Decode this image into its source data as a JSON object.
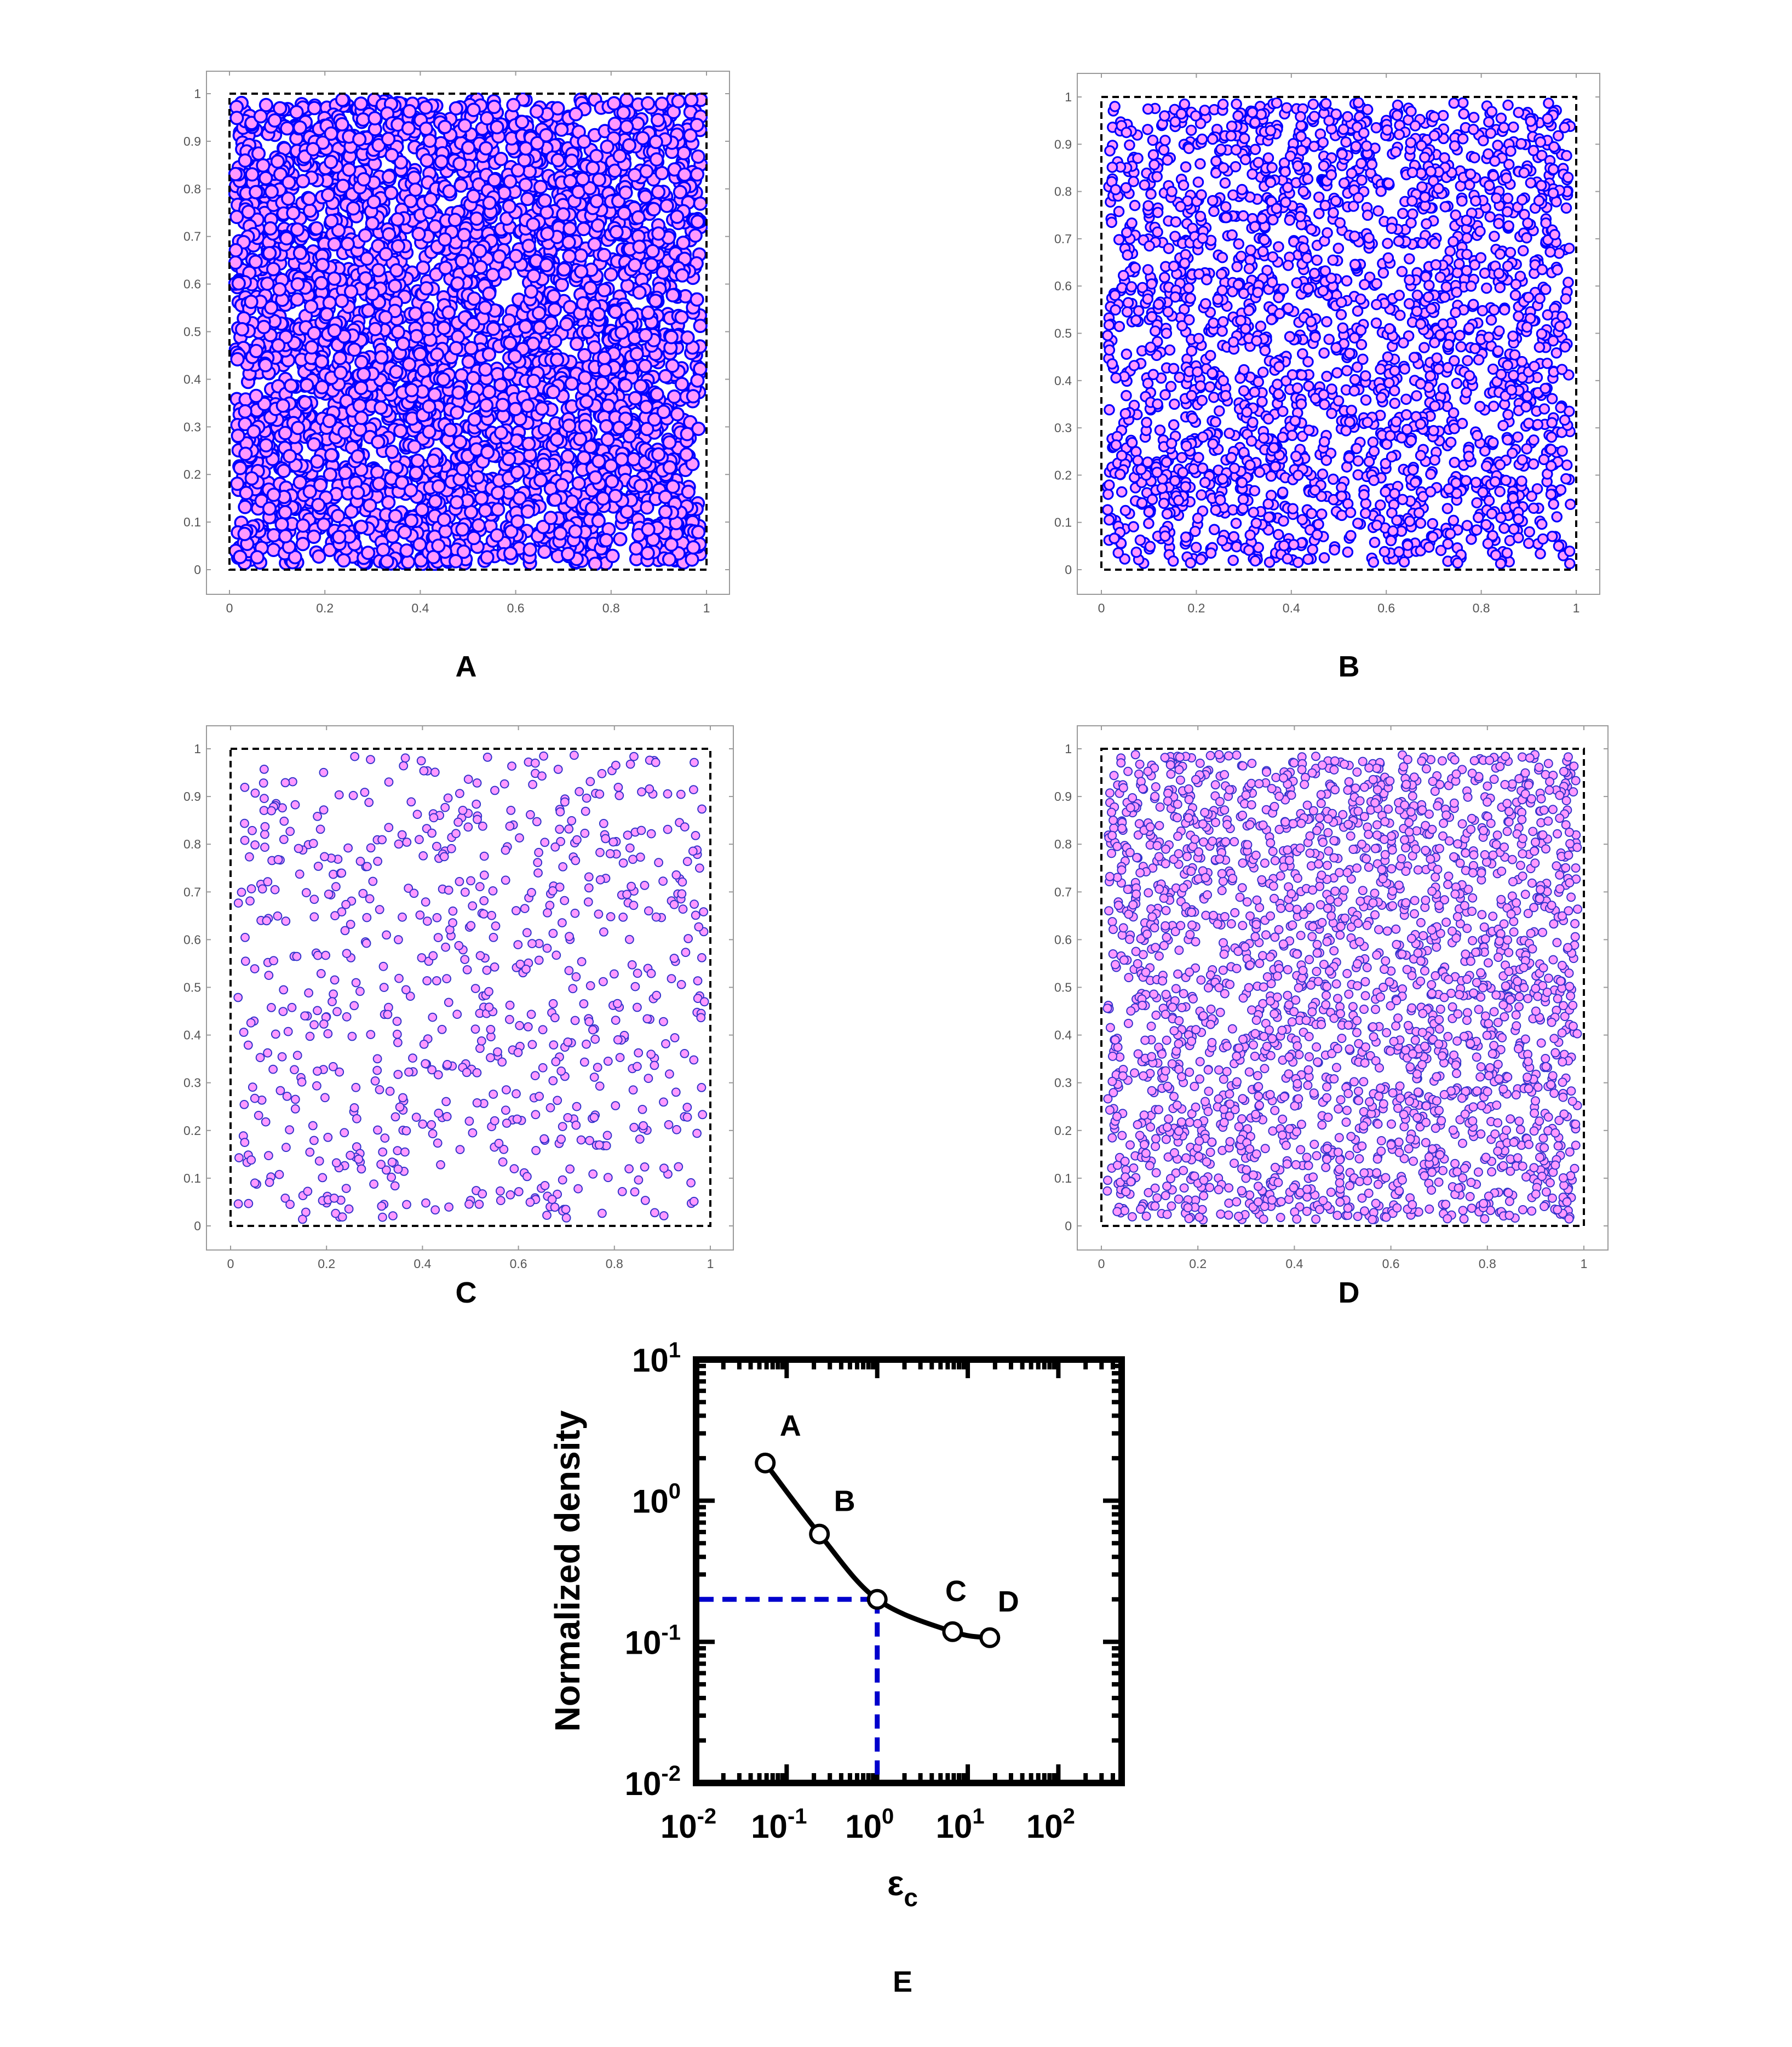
{
  "chart_data": [
    {
      "panel": "A",
      "type": "scatter",
      "label": "A",
      "xlim": [
        0,
        1
      ],
      "ylim": [
        0,
        1
      ],
      "x_ticks": [
        "0",
        "0.2",
        "0.4",
        "0.6",
        "0.8",
        "1"
      ],
      "y_ticks": [
        "0",
        "0.1",
        "0.2",
        "0.3",
        "0.4",
        "0.5",
        "0.6",
        "0.7",
        "0.8",
        "0.9",
        "1"
      ],
      "particle_count_estimate": 3500,
      "marker_fill": "#ff99ff",
      "marker_edge": "#0000ff",
      "boundary": "dashed square (0,0)-(1,1)",
      "grid": false
    },
    {
      "panel": "B",
      "type": "scatter",
      "label": "B",
      "xlim": [
        0,
        1
      ],
      "ylim": [
        0,
        1
      ],
      "x_ticks": [
        "0",
        "0.2",
        "0.4",
        "0.6",
        "0.8",
        "1"
      ],
      "y_ticks": [
        "0",
        "0.1",
        "0.2",
        "0.3",
        "0.4",
        "0.5",
        "0.6",
        "0.7",
        "0.8",
        "0.9",
        "1"
      ],
      "particle_count_estimate": 2300,
      "marker_fill": "#ff99ff",
      "marker_edge": "#0000ff",
      "boundary": "dashed square (0,0)-(1,1)",
      "grid": false
    },
    {
      "panel": "C",
      "type": "scatter",
      "label": "C",
      "xlim": [
        0,
        1
      ],
      "ylim": [
        0,
        1
      ],
      "x_ticks": [
        "0",
        "0.2",
        "0.4",
        "0.6",
        "0.8",
        "1"
      ],
      "y_ticks": [
        "0",
        "0.1",
        "0.2",
        "0.3",
        "0.4",
        "0.5",
        "0.6",
        "0.7",
        "0.8",
        "0.9",
        "1"
      ],
      "particle_count_estimate": 750,
      "marker_fill": "#ff99ff",
      "marker_edge": "#3333cc",
      "boundary": "dashed square (0,0)-(1,1)",
      "grid": false
    },
    {
      "panel": "D",
      "type": "scatter",
      "label": "D",
      "xlim": [
        0,
        1
      ],
      "ylim": [
        0,
        1
      ],
      "x_ticks": [
        "0",
        "0.2",
        "0.4",
        "0.6",
        "0.8",
        "1"
      ],
      "y_ticks": [
        "0",
        "0.1",
        "0.2",
        "0.3",
        "0.4",
        "0.5",
        "0.6",
        "0.7",
        "0.8",
        "0.9",
        "1"
      ],
      "particle_count_estimate": 2400,
      "marker_fill": "#ff99ff",
      "marker_edge": "#3333cc",
      "boundary": "dashed square (0,0)-(1,1)",
      "grid": false
    },
    {
      "panel": "E",
      "type": "line",
      "label": "E",
      "xscale": "log",
      "yscale": "log",
      "xlim": [
        0.01,
        500
      ],
      "ylim": [
        0.01,
        10
      ],
      "x_ticks": [
        {
          "base": "10",
          "exp": "-2"
        },
        {
          "base": "10",
          "exp": "-1"
        },
        {
          "base": "10",
          "exp": "0"
        },
        {
          "base": "10",
          "exp": "1"
        },
        {
          "base": "10",
          "exp": "2"
        }
      ],
      "y_ticks": [
        {
          "base": "10",
          "exp": "-2"
        },
        {
          "base": "10",
          "exp": "-1"
        },
        {
          "base": "10",
          "exp": "0"
        },
        {
          "base": "10",
          "exp": "1"
        }
      ],
      "xlabel": {
        "main": "ε",
        "sub": "c"
      },
      "ylabel": "Normalized density",
      "points": [
        {
          "x": 0.058,
          "y": 1.85,
          "label": "A"
        },
        {
          "x": 0.23,
          "y": 0.58,
          "label": "B"
        },
        {
          "x": 1.0,
          "y": 0.2,
          "label": ""
        },
        {
          "x": 6.8,
          "y": 0.118,
          "label": "C"
        },
        {
          "x": 17.5,
          "y": 0.107,
          "label": "D"
        }
      ],
      "reference_x": 1.0,
      "reference_y": 0.2,
      "line_color": "#000000",
      "reference_color": "#0000cc",
      "grid": false
    }
  ]
}
